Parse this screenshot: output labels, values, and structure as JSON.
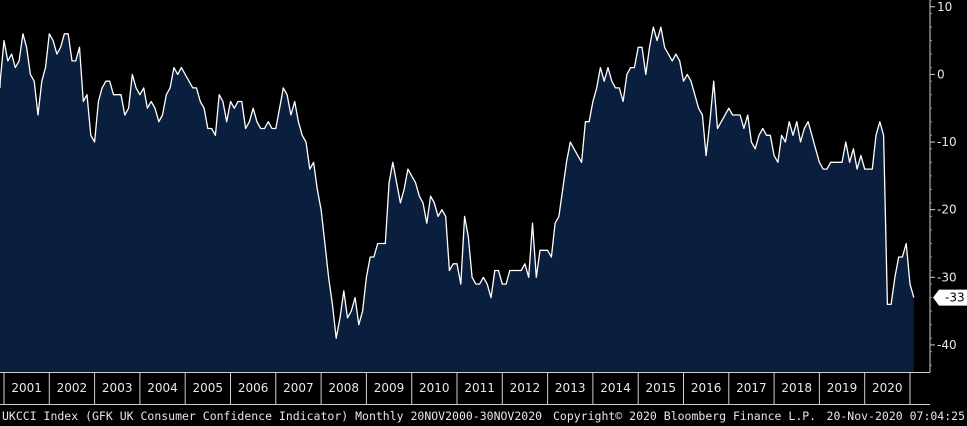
{
  "chart_data": {
    "type": "area",
    "title": "",
    "xlabel": "",
    "ylabel": "",
    "ylim": [
      -44,
      11
    ],
    "yticks": [
      10,
      0,
      -10,
      -20,
      -30,
      -40
    ],
    "x_labels": [
      "2001",
      "2002",
      "2003",
      "2004",
      "2005",
      "2006",
      "2007",
      "2008",
      "2009",
      "2010",
      "2011",
      "2012",
      "2013",
      "2014",
      "2015",
      "2016",
      "2017",
      "2018",
      "2019",
      "2020"
    ],
    "x_start": "2000-11",
    "grid": false,
    "line_color": "#ffffff",
    "fill_color": "#0a1f3d",
    "last_value_label": "-33",
    "series": [
      {
        "values": [
          -2,
          -1,
          5,
          2,
          3,
          1,
          2,
          6,
          4,
          0,
          -1,
          -6,
          -1,
          1,
          6,
          5,
          3,
          4,
          6,
          6,
          2,
          2,
          4,
          -4,
          -3,
          -9,
          -10,
          -4,
          -2,
          -1,
          -1,
          -3,
          -3,
          -3,
          -6,
          -5,
          0,
          -2,
          -3,
          -2,
          -5,
          -4,
          -5,
          -7,
          -6,
          -3,
          -2,
          1,
          0,
          1,
          0,
          -1,
          -2,
          -2,
          -4,
          -5,
          -8,
          -8,
          -9,
          -3,
          -4,
          -7,
          -4,
          -5,
          -4,
          -4,
          -8,
          -7,
          -5,
          -7,
          -8,
          -8,
          -7,
          -8,
          -8,
          -5,
          -2,
          -3,
          -6,
          -4,
          -7,
          -9,
          -10,
          -14,
          -13,
          -17,
          -20,
          -25,
          -30,
          -34,
          -39,
          -36,
          -32,
          -36,
          -35,
          -33,
          -37,
          -35,
          -30,
          -27,
          -27,
          -25,
          -25,
          -25,
          -16,
          -13,
          -16,
          -19,
          -17,
          -14,
          -15,
          -16,
          -18,
          -19,
          -22,
          -18,
          -19,
          -21,
          -20,
          -21,
          -29,
          -28,
          -28,
          -31,
          -21,
          -24,
          -30,
          -31,
          -31,
          -30,
          -31,
          -33,
          -29,
          -29,
          -31,
          -31,
          -29,
          -29,
          -29,
          -29,
          -28,
          -30,
          -22,
          -30,
          -26,
          -26,
          -26,
          -27,
          -22,
          -21,
          -17,
          -13,
          -10,
          -11,
          -12,
          -13,
          -7,
          -7,
          -4,
          -2,
          1,
          -1,
          1,
          -1,
          -2,
          -2,
          -4,
          0,
          1,
          1,
          4,
          4,
          0,
          4,
          7,
          5,
          7,
          4,
          3,
          2,
          3,
          2,
          -1,
          0,
          -1,
          -3,
          -5,
          -6,
          -12,
          -7,
          -1,
          -8,
          -7,
          -6,
          -5,
          -6,
          -6,
          -6,
          -8,
          -6,
          -10,
          -11,
          -9,
          -8,
          -9,
          -9,
          -12,
          -13,
          -9,
          -10,
          -7,
          -9,
          -7,
          -10,
          -8,
          -7,
          -9,
          -11,
          -13,
          -14,
          -14,
          -13,
          -13,
          -13,
          -13,
          -10,
          -13,
          -11,
          -14,
          -12,
          -14,
          -14,
          -14,
          -9,
          -7,
          -9,
          -34,
          -34,
          -30,
          -27,
          -27,
          -25,
          -31,
          -33
        ]
      }
    ]
  },
  "footer": {
    "ticker": "UKCCI Index (GFK UK Consumer Confidence Indicator) Monthly 20NOV2000-30NOV2020",
    "copyright": "Copyright© 2020 Bloomberg Finance L.P.",
    "timestamp": "20-Nov-2020 07:04:25"
  }
}
